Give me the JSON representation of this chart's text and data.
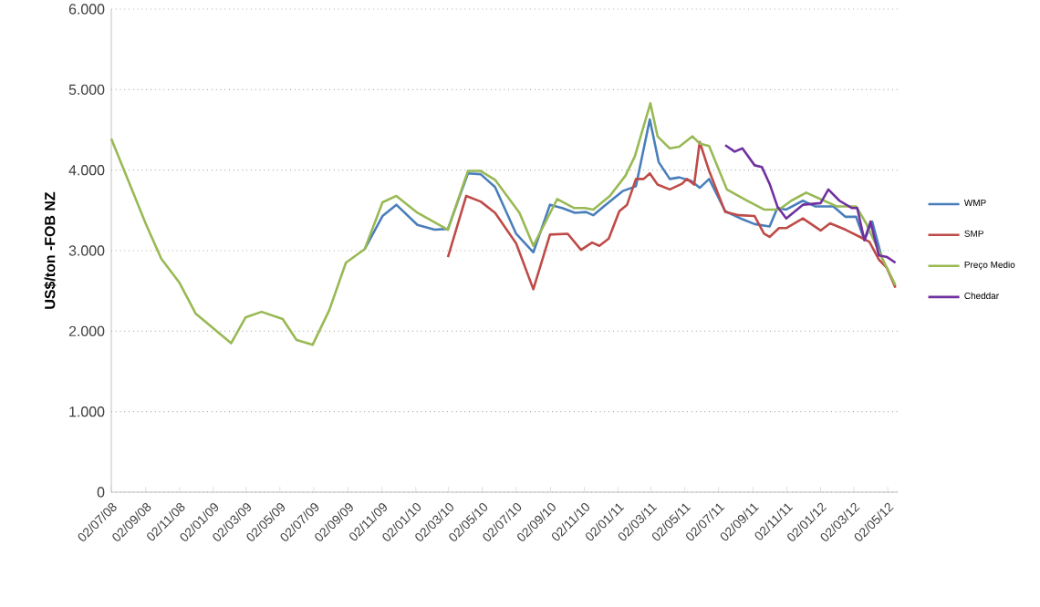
{
  "chart_data": {
    "type": "line",
    "ylabel": "US$/ton -FOB NZ",
    "ylim": [
      0,
      6000
    ],
    "yticks": [
      0,
      {
        "value": 1000,
        "label": "1.000"
      },
      {
        "value": 2000,
        "label": "2.000"
      },
      {
        "value": 3000,
        "label": "3.000"
      },
      {
        "value": 4000,
        "label": "4.000"
      },
      {
        "value": 5000,
        "label": "5.000"
      },
      {
        "value": 6000,
        "label": "6.000"
      }
    ],
    "xlim": [
      "2008-07-02",
      "2012-05-20"
    ],
    "xticks": [
      {
        "value": "2008-07-02",
        "label": "02/07/08"
      },
      {
        "value": "2008-09-02",
        "label": "02/09/08"
      },
      {
        "value": "2008-11-02",
        "label": "02/11/08"
      },
      {
        "value": "2009-01-02",
        "label": "02/01/09"
      },
      {
        "value": "2009-03-02",
        "label": "02/03/09"
      },
      {
        "value": "2009-05-02",
        "label": "02/05/09"
      },
      {
        "value": "2009-07-02",
        "label": "02/07/09"
      },
      {
        "value": "2009-09-02",
        "label": "02/09/09"
      },
      {
        "value": "2009-11-02",
        "label": "02/11/09"
      },
      {
        "value": "2010-01-02",
        "label": "02/01/10"
      },
      {
        "value": "2010-03-02",
        "label": "02/03/10"
      },
      {
        "value": "2010-05-02",
        "label": "02/05/10"
      },
      {
        "value": "2010-07-02",
        "label": "02/07/10"
      },
      {
        "value": "2010-09-02",
        "label": "02/09/10"
      },
      {
        "value": "2010-11-02",
        "label": "02/11/10"
      },
      {
        "value": "2011-01-02",
        "label": "02/01/11"
      },
      {
        "value": "2011-03-02",
        "label": "02/03/11"
      },
      {
        "value": "2011-05-02",
        "label": "02/05/11"
      },
      {
        "value": "2011-07-02",
        "label": "02/07/11"
      },
      {
        "value": "2011-09-02",
        "label": "02/09/11"
      },
      {
        "value": "2011-11-02",
        "label": "02/11/11"
      },
      {
        "value": "2012-01-02",
        "label": "02/01/12"
      },
      {
        "value": "2012-03-02",
        "label": "02/03/12"
      },
      {
        "value": "2012-05-02",
        "label": "02/05/12"
      }
    ],
    "grid": "y",
    "legend": "right",
    "line_style": "solid",
    "marker": "none",
    "series": [
      {
        "name": "WMP",
        "color": "#4a7ebb",
        "x": [
          "2009-10-02",
          "2009-11-03",
          "2009-11-28",
          "2010-01-05",
          "2010-02-05",
          "2010-03-01",
          "2010-04-06",
          "2010-04-29",
          "2010-05-25",
          "2010-07-02",
          "2010-08-02",
          "2010-09-01",
          "2010-09-23",
          "2010-10-16",
          "2010-11-05",
          "2010-11-18",
          "2010-12-07",
          "2011-01-10",
          "2011-02-03",
          "2011-02-28",
          "2011-03-16",
          "2011-04-05",
          "2011-04-22",
          "2011-05-13",
          "2011-05-29",
          "2011-06-15",
          "2011-07-14",
          "2011-08-14",
          "2011-09-05",
          "2011-10-02",
          "2011-10-16",
          "2011-11-01",
          "2011-12-01",
          "2011-12-23",
          "2012-01-25",
          "2012-02-16",
          "2012-03-06",
          "2012-03-21",
          "2012-04-04",
          "2012-04-21"
        ],
        "values": [
          3020,
          3430,
          3570,
          3320,
          3260,
          3270,
          3960,
          3950,
          3790,
          3210,
          2980,
          3570,
          3530,
          3470,
          3480,
          3440,
          3550,
          3740,
          3800,
          4630,
          4100,
          3890,
          3910,
          3870,
          3780,
          3890,
          3490,
          3390,
          3330,
          3300,
          3530,
          3510,
          3620,
          3550,
          3550,
          3420,
          3420,
          3130,
          3360,
          2920
        ]
      },
      {
        "name": "SMP",
        "color": "#be4b48",
        "x": [
          "2010-03-01",
          "2010-04-03",
          "2010-04-29",
          "2010-05-25",
          "2010-07-02",
          "2010-08-02",
          "2010-09-01",
          "2010-10-03",
          "2010-10-27",
          "2010-11-16",
          "2010-11-29",
          "2010-12-16",
          "2011-01-04",
          "2011-01-18",
          "2011-02-03",
          "2011-02-17",
          "2011-02-28",
          "2011-03-14",
          "2011-04-05",
          "2011-04-27",
          "2011-05-06",
          "2011-05-19",
          "2011-05-29",
          "2011-06-15",
          "2011-07-14",
          "2011-08-08",
          "2011-09-05",
          "2011-09-22",
          "2011-10-02",
          "2011-10-19",
          "2011-11-01",
          "2011-12-01",
          "2012-01-02",
          "2012-01-19",
          "2012-02-16",
          "2012-03-13",
          "2012-03-30",
          "2012-04-16",
          "2012-04-30",
          "2012-05-16"
        ],
        "values": [
          2920,
          3680,
          3610,
          3470,
          3090,
          2520,
          3200,
          3210,
          3010,
          3100,
          3060,
          3150,
          3490,
          3570,
          3890,
          3890,
          3960,
          3820,
          3760,
          3830,
          3890,
          3820,
          4350,
          3990,
          3480,
          3440,
          3430,
          3210,
          3170,
          3280,
          3280,
          3400,
          3250,
          3340,
          3260,
          3170,
          3110,
          2890,
          2790,
          2540
        ]
      },
      {
        "name": "Preço Medio",
        "color": "#98b954",
        "x": [
          "2008-07-02",
          "2008-08-01",
          "2008-09-03",
          "2008-09-30",
          "2008-11-02",
          "2008-12-01",
          "2009-01-01",
          "2009-02-03",
          "2009-03-01",
          "2009-03-30",
          "2009-05-07",
          "2009-06-01",
          "2009-06-30",
          "2009-07-30",
          "2009-08-29",
          "2009-10-02",
          "2009-11-03",
          "2009-11-28",
          "2010-01-05",
          "2010-03-01",
          "2010-04-06",
          "2010-04-29",
          "2010-05-25",
          "2010-07-08",
          "2010-08-02",
          "2010-09-14",
          "2010-10-14",
          "2010-11-03",
          "2010-11-18",
          "2010-12-18",
          "2011-01-15",
          "2011-02-01",
          "2011-03-01",
          "2011-03-14",
          "2011-04-05",
          "2011-04-22",
          "2011-05-16",
          "2011-05-29",
          "2011-06-15",
          "2011-07-17",
          "2011-08-20",
          "2011-09-22",
          "2011-10-19",
          "2011-11-10",
          "2011-12-07",
          "2012-01-02",
          "2012-01-31",
          "2012-03-06",
          "2012-03-24",
          "2012-04-21",
          "2012-05-16"
        ],
        "values": [
          4390,
          3880,
          3320,
          2900,
          2600,
          2220,
          2040,
          1850,
          2170,
          2240,
          2150,
          1890,
          1830,
          2260,
          2850,
          3020,
          3600,
          3680,
          3470,
          3260,
          3990,
          3990,
          3880,
          3470,
          3060,
          3640,
          3530,
          3530,
          3510,
          3680,
          3930,
          4170,
          4830,
          4420,
          4270,
          4290,
          4420,
          4330,
          4300,
          3760,
          3630,
          3510,
          3510,
          3620,
          3720,
          3640,
          3550,
          3550,
          3340,
          2920,
          2570
        ]
      },
      {
        "name": "Cheddar",
        "color": "#7030a0",
        "x": [
          "2011-07-14",
          "2011-07-31",
          "2011-08-14",
          "2011-09-05",
          "2011-09-18",
          "2011-10-02",
          "2011-10-16",
          "2011-11-01",
          "2011-12-01",
          "2012-01-02",
          "2012-01-16",
          "2012-02-05",
          "2012-02-27",
          "2012-03-08",
          "2012-03-21",
          "2012-04-01",
          "2012-04-16",
          "2012-05-01",
          "2012-05-16"
        ],
        "values": [
          4310,
          4230,
          4270,
          4060,
          4040,
          3830,
          3550,
          3400,
          3570,
          3590,
          3760,
          3620,
          3530,
          3530,
          3130,
          3360,
          2940,
          2920,
          2850
        ]
      }
    ]
  }
}
